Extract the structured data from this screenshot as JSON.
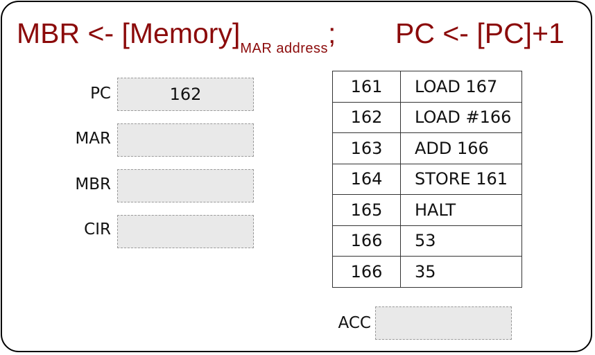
{
  "title": {
    "left_main": "MBR <- [Memory]",
    "left_sub": "MAR  address",
    "sep": ";",
    "right": "PC <- [PC]+1",
    "color": "#8b0a0a"
  },
  "registers": [
    {
      "label": "PC",
      "value": "162"
    },
    {
      "label": "MAR",
      "value": ""
    },
    {
      "label": "MBR",
      "value": ""
    },
    {
      "label": "CIR",
      "value": ""
    }
  ],
  "memory": [
    {
      "address": "161",
      "content": "LOAD 167"
    },
    {
      "address": "162",
      "content": "LOAD #166"
    },
    {
      "address": "163",
      "content": "ADD 166"
    },
    {
      "address": "164",
      "content": "STORE 161"
    },
    {
      "address": "165",
      "content": "HALT"
    },
    {
      "address": "166",
      "content": "53"
    },
    {
      "address": "166",
      "content": "35"
    }
  ],
  "acc": {
    "label": "ACC",
    "value": ""
  }
}
